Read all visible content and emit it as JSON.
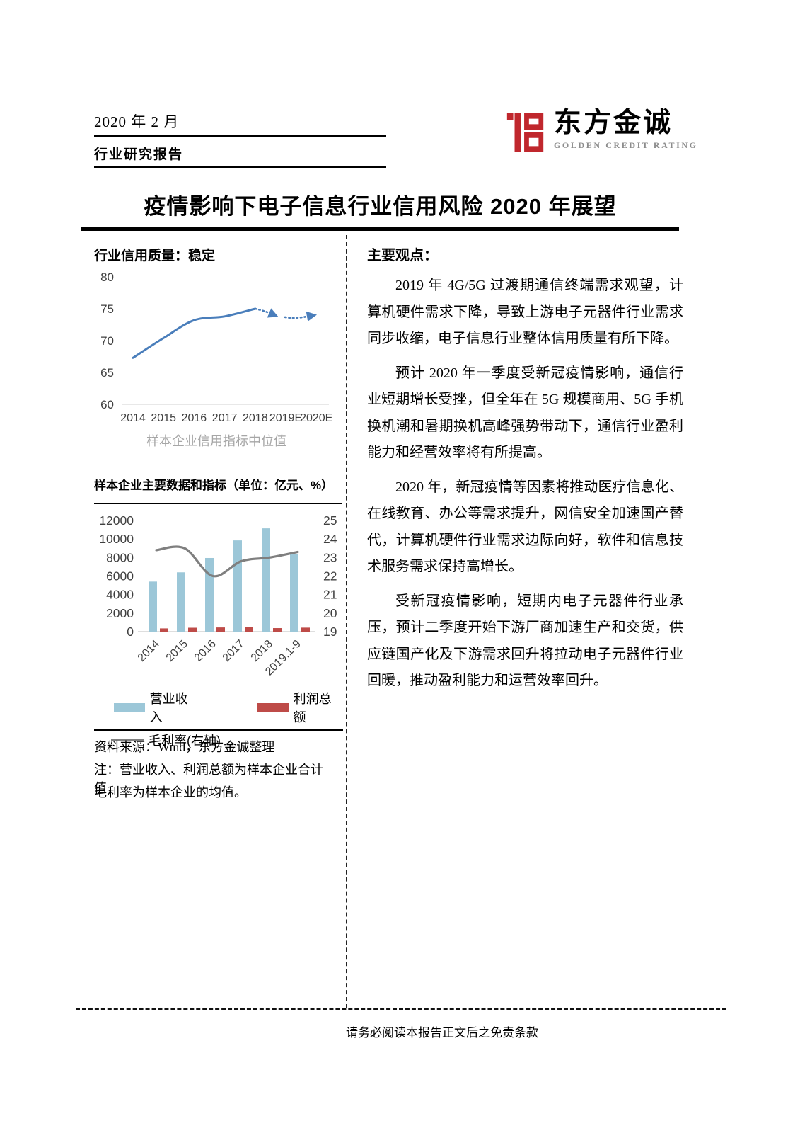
{
  "header": {
    "date": "2020 年 2 月",
    "report_type": "行业研究报告",
    "logo_cn": "东方金诚",
    "logo_en": "GOLDEN CREDIT RATING"
  },
  "title": "疫情影响下电子信息行业信用风险 2020 年展望",
  "left": {
    "chart1_heading": "行业信用质量：稳定",
    "chart1_caption": "样本企业信用指标中位值",
    "chart2_heading": "样本企业主要数据和指标（单位：亿元、%）",
    "legend": {
      "revenue": "营业收入",
      "profit": "利润总额",
      "margin": "毛利率(右轴)"
    },
    "source": "资料来源：Wind，东方金诚整理",
    "note_line1": "注：营业收入、利润总额为样本企业合计值，",
    "note_line2": "毛利率为样本企业的均值。"
  },
  "right": {
    "heading": "主要观点：",
    "paragraphs": [
      "2019 年 4G/5G 过渡期通信终端需求观望，计算机硬件需求下降，导致上游电子元器件行业需求同步收缩，电子信息行业整体信用质量有所下降。",
      "预计 2020 年一季度受新冠疫情影响，通信行业短期增长受挫，但全年在 5G 规模商用、5G 手机换机潮和暑期换机高峰强势带动下，通信行业盈利能力和经营效率将有所提高。",
      "2020 年，新冠疫情等因素将推动医疗信息化、在线教育、办公等需求提升，网信安全加速国产替代，计算机硬件行业需求边际向好，软件和信息技术服务需求保持高增长。",
      "受新冠疫情影响，短期内电子元器件行业承压，预计二季度开始下游厂商加速生产和交货，供应链国产化及下游需求回升将拉动电子元器件行业回暖，推动盈利能力和运营效率回升。"
    ]
  },
  "footer": {
    "disclaimer": "请务必阅读本报告正文后之免责条款"
  },
  "colors": {
    "accent_blue": "#4a7ebb",
    "bar_blue": "#9cc7d8",
    "bar_red": "#be4b48",
    "line_gray": "#7f7f7f",
    "logo_red": "#c0272d",
    "caption_gray": "#a6a6a6",
    "axis_text": "#3f3f3f"
  },
  "chart_data": [
    {
      "type": "line",
      "title": "行业信用质量：稳定",
      "caption": "样本企业信用指标中位值",
      "categories": [
        "2014",
        "2015",
        "2016",
        "2017",
        "2018",
        "2019E",
        "2020E"
      ],
      "values": [
        67.3,
        70.4,
        73.2,
        73.8,
        75.0,
        73.9,
        74.0
      ],
      "solid_points": 5,
      "forecast_style": "dotted-with-arrowheads",
      "ylim": [
        60,
        80
      ],
      "yticks": [
        60,
        65,
        70,
        75,
        80
      ],
      "grid": "baseline-only",
      "legend_position": "none"
    },
    {
      "type": "bar+line",
      "title": "样本企业主要数据和指标（单位：亿元、%）",
      "categories": [
        "2014",
        "2015",
        "2016",
        "2017",
        "2018",
        "2019.1-9"
      ],
      "series": [
        {
          "name": "营业收入",
          "type": "bar",
          "axis": "left",
          "values": [
            5400,
            6400,
            7950,
            9850,
            11150,
            8350
          ]
        },
        {
          "name": "利润总额",
          "type": "bar",
          "axis": "left",
          "values": [
            350,
            420,
            450,
            460,
            380,
            430
          ]
        },
        {
          "name": "毛利率(右轴)",
          "type": "line",
          "axis": "right",
          "values": [
            23.4,
            23.5,
            22.0,
            22.8,
            23.0,
            23.3
          ]
        }
      ],
      "left_ylim": [
        0,
        12000
      ],
      "left_yticks": [
        0,
        2000,
        4000,
        6000,
        8000,
        10000,
        12000
      ],
      "right_ylim": [
        19,
        25
      ],
      "right_yticks": [
        19,
        20,
        21,
        22,
        23,
        24,
        25
      ],
      "grid": "baseline-only",
      "legend_position": "bottom"
    }
  ]
}
